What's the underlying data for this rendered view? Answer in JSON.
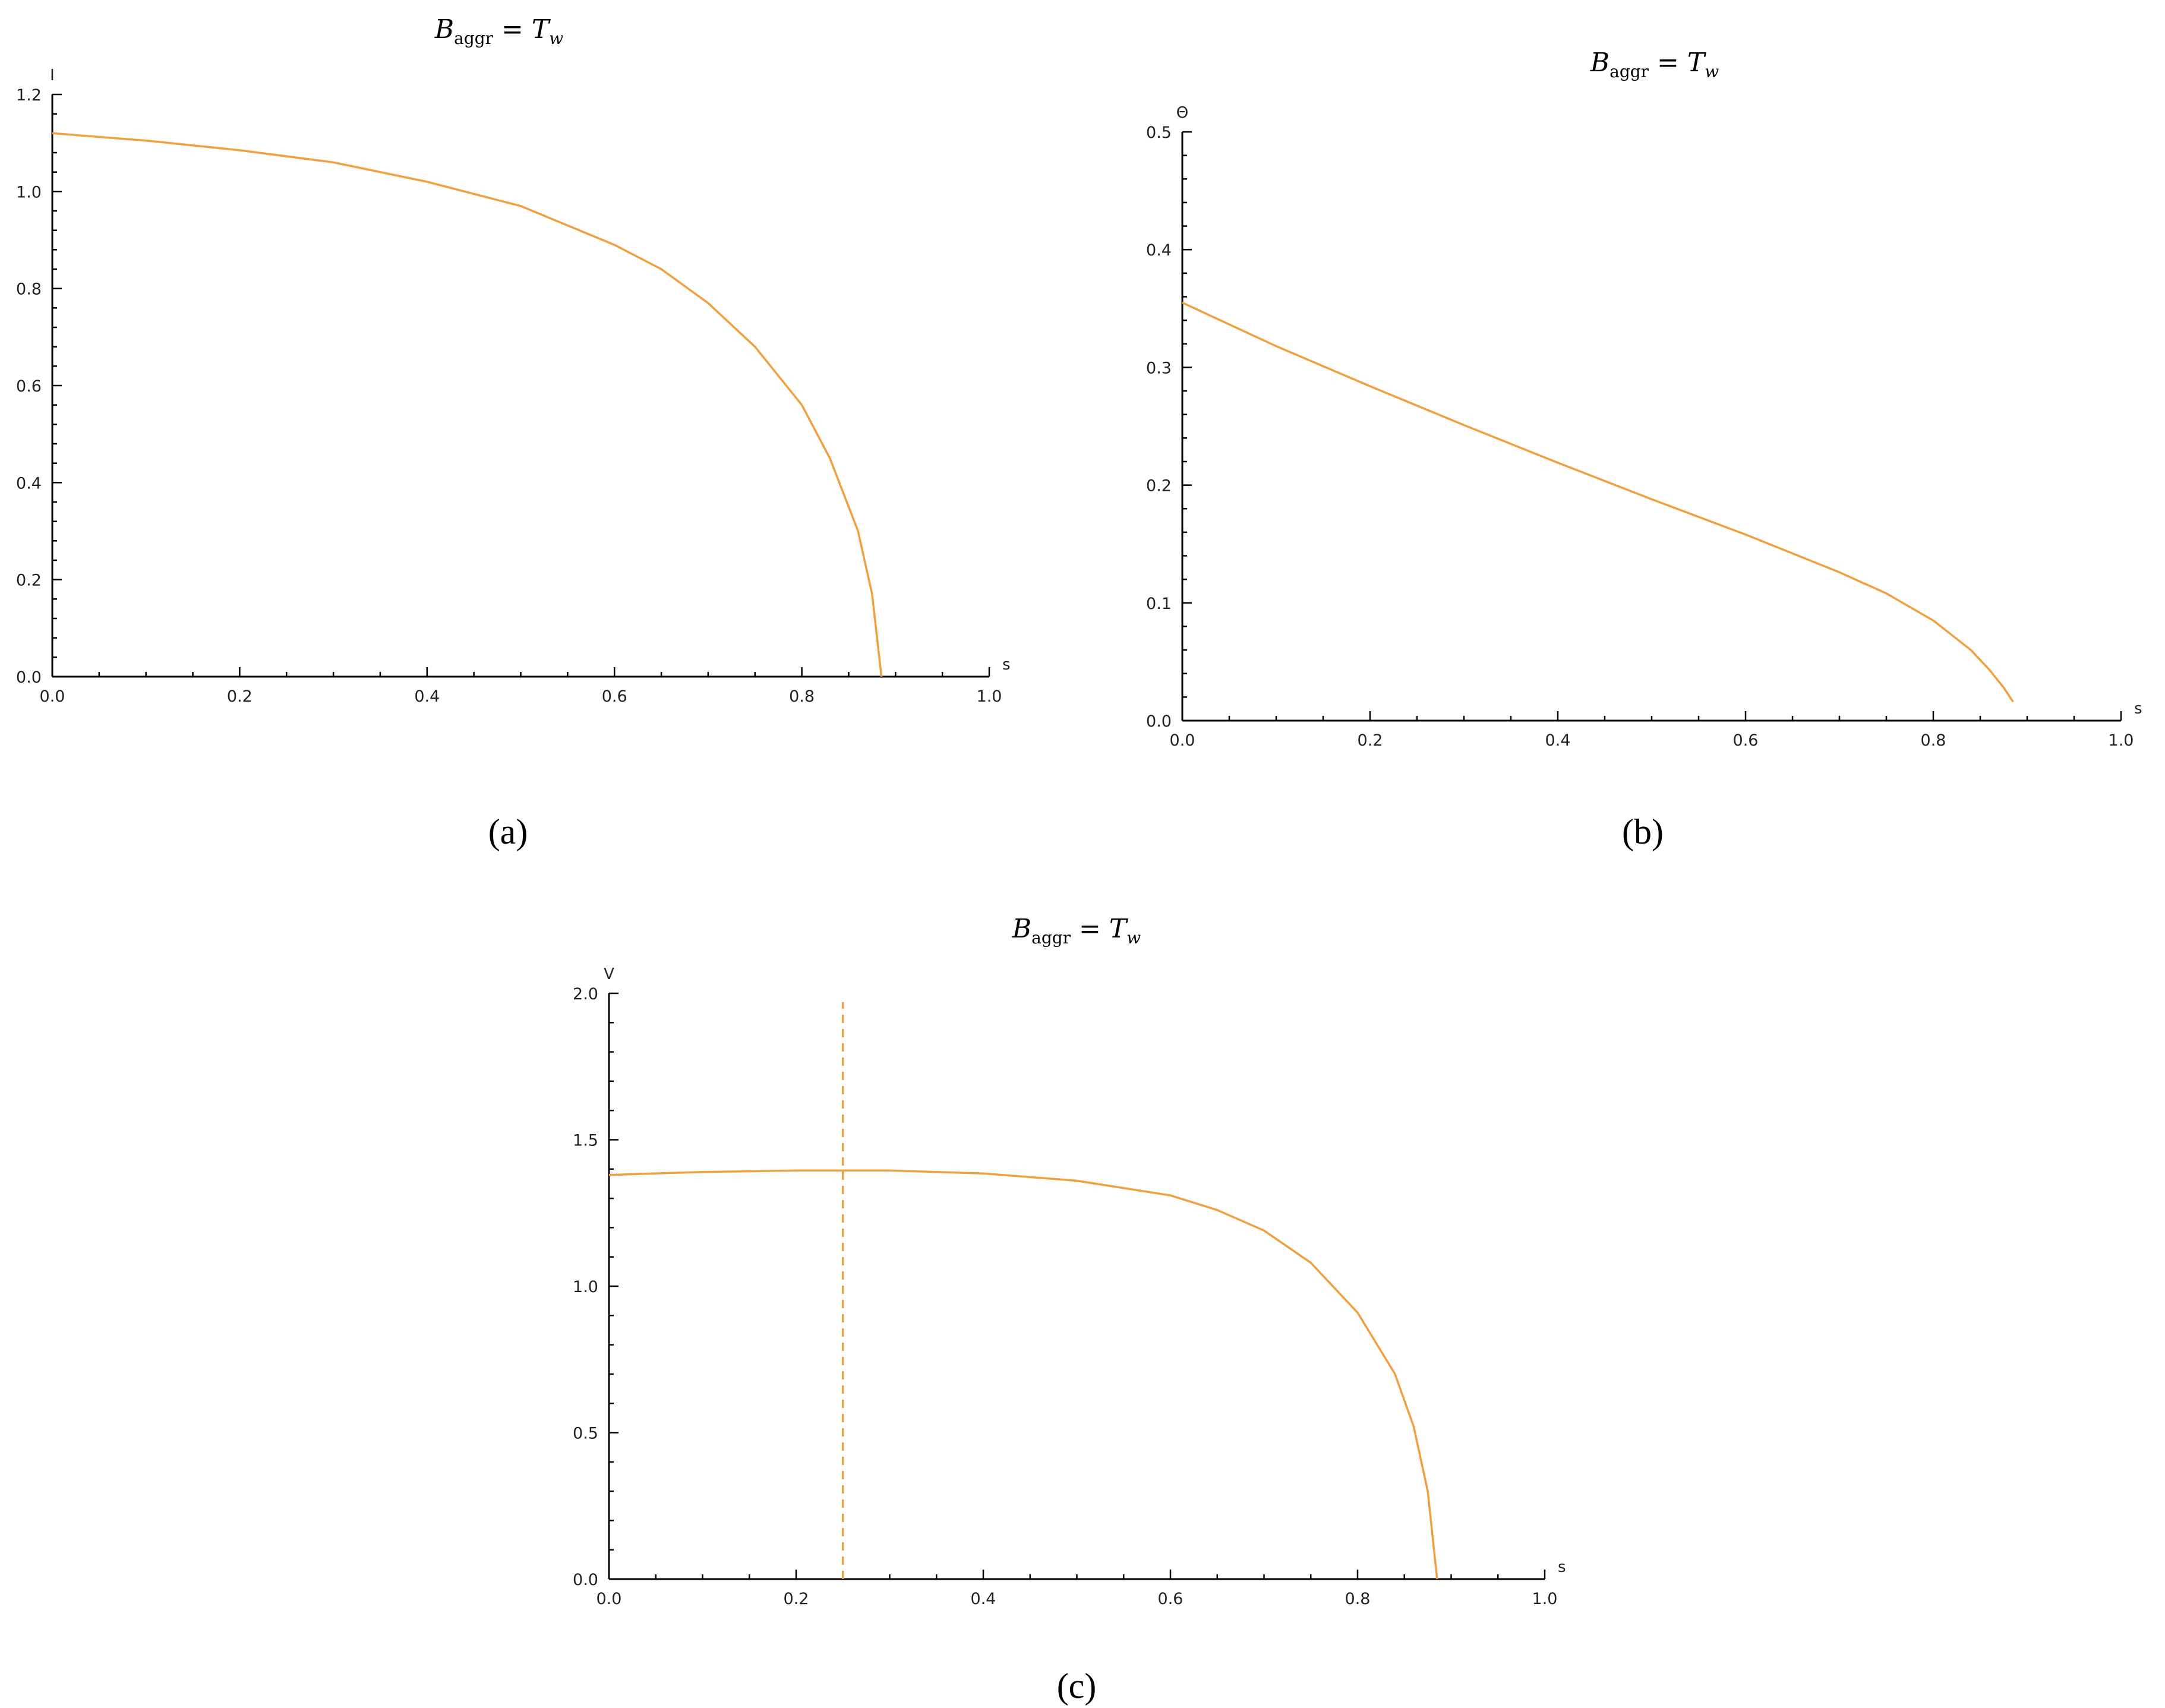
{
  "chart_data": [
    {
      "type": "line",
      "caption": "(a)",
      "title": {
        "main": "B",
        "sub": "aggr",
        "rest": " = T",
        "rest_sub": "w"
      },
      "xlabel": "s",
      "ylabel": "I",
      "xlim": [
        0,
        1.0
      ],
      "ylim": [
        0,
        1.2
      ],
      "xticks": [
        "0.0",
        "0.2",
        "0.4",
        "0.6",
        "0.8",
        "1.0"
      ],
      "yticks": [
        "0.0",
        "0.2",
        "0.4",
        "0.6",
        "0.8",
        "1.0",
        "1.2"
      ],
      "xtick_values": [
        0,
        0.2,
        0.4,
        0.6,
        0.8,
        1.0
      ],
      "ytick_values": [
        0,
        0.2,
        0.4,
        0.6,
        0.8,
        1.0,
        1.2
      ],
      "grid": false,
      "series": [
        {
          "color": "#f0a040",
          "points": [
            [
              0,
              1.12
            ],
            [
              0.1,
              1.105
            ],
            [
              0.2,
              1.085
            ],
            [
              0.3,
              1.06
            ],
            [
              0.4,
              1.02
            ],
            [
              0.5,
              0.97
            ],
            [
              0.6,
              0.89
            ],
            [
              0.65,
              0.84
            ],
            [
              0.7,
              0.77
            ],
            [
              0.75,
              0.68
            ],
            [
              0.8,
              0.56
            ],
            [
              0.83,
              0.45
            ],
            [
              0.86,
              0.3
            ],
            [
              0.875,
              0.17
            ],
            [
              0.885,
              0.0
            ]
          ]
        }
      ]
    },
    {
      "type": "line",
      "caption": "(b)",
      "title": {
        "main": "B",
        "sub": "aggr",
        "rest": " = T",
        "rest_sub": "w"
      },
      "xlabel": "s",
      "ylabel": "Θ",
      "xlim": [
        0,
        1.0
      ],
      "ylim": [
        0,
        0.5
      ],
      "xticks": [
        "0.0",
        "0.2",
        "0.4",
        "0.6",
        "0.8",
        "1.0"
      ],
      "yticks": [
        "0.0",
        "0.1",
        "0.2",
        "0.3",
        "0.4",
        "0.5"
      ],
      "xtick_values": [
        0,
        0.2,
        0.4,
        0.6,
        0.8,
        1.0
      ],
      "ytick_values": [
        0,
        0.1,
        0.2,
        0.3,
        0.4,
        0.5
      ],
      "grid": false,
      "series": [
        {
          "color": "#f0a040",
          "points": [
            [
              0,
              0.355
            ],
            [
              0.1,
              0.318
            ],
            [
              0.2,
              0.284
            ],
            [
              0.3,
              0.251
            ],
            [
              0.4,
              0.219
            ],
            [
              0.5,
              0.188
            ],
            [
              0.6,
              0.158
            ],
            [
              0.7,
              0.126
            ],
            [
              0.75,
              0.108
            ],
            [
              0.8,
              0.085
            ],
            [
              0.84,
              0.06
            ],
            [
              0.86,
              0.043
            ],
            [
              0.875,
              0.028
            ],
            [
              0.885,
              0.016
            ]
          ]
        }
      ]
    },
    {
      "type": "line",
      "caption": "(c)",
      "title": {
        "main": "B",
        "sub": "aggr",
        "rest": " = T",
        "rest_sub": "w"
      },
      "xlabel": "s",
      "ylabel": "V",
      "xlim": [
        0,
        1.0
      ],
      "ylim": [
        0,
        2.0
      ],
      "xticks": [
        "0.0",
        "0.2",
        "0.4",
        "0.6",
        "0.8",
        "1.0"
      ],
      "yticks": [
        "0.0",
        "0.5",
        "1.0",
        "1.5",
        "2.0"
      ],
      "xtick_values": [
        0,
        0.2,
        0.4,
        0.6,
        0.8,
        1.0
      ],
      "ytick_values": [
        0,
        0.5,
        1.0,
        1.5,
        2.0
      ],
      "grid": false,
      "vline": {
        "x": 0.25,
        "y_top": 1.97,
        "style": "dashed",
        "color": "#f0a040"
      },
      "series": [
        {
          "color": "#f0a040",
          "points": [
            [
              0,
              1.38
            ],
            [
              0.1,
              1.39
            ],
            [
              0.2,
              1.395
            ],
            [
              0.3,
              1.395
            ],
            [
              0.4,
              1.385
            ],
            [
              0.5,
              1.36
            ],
            [
              0.6,
              1.31
            ],
            [
              0.65,
              1.26
            ],
            [
              0.7,
              1.19
            ],
            [
              0.75,
              1.08
            ],
            [
              0.8,
              0.91
            ],
            [
              0.84,
              0.7
            ],
            [
              0.86,
              0.52
            ],
            [
              0.875,
              0.3
            ],
            [
              0.885,
              0.0
            ]
          ]
        }
      ]
    }
  ]
}
